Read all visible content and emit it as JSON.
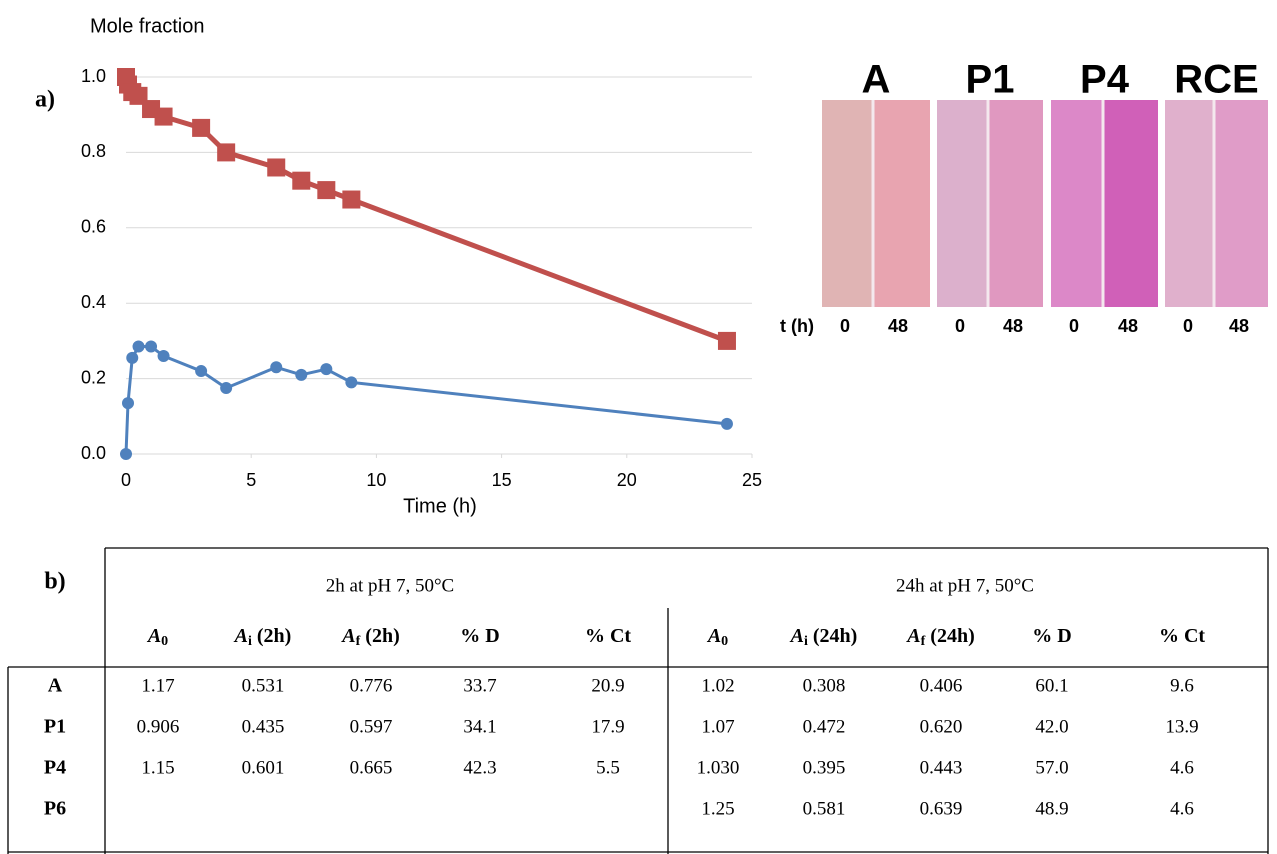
{
  "chart_data": {
    "type": "line",
    "panel_label": "a)",
    "y_label": "Mole fraction",
    "x_label": "Time (h)",
    "x": [
      0,
      0.08,
      0.25,
      0.5,
      1,
      1.5,
      3,
      4,
      6,
      7,
      8,
      9,
      24
    ],
    "series": [
      {
        "color": "#c0504d",
        "marker": "square",
        "values": [
          1.0,
          0.98,
          0.96,
          0.95,
          0.915,
          0.895,
          0.865,
          0.8,
          0.76,
          0.725,
          0.7,
          0.675,
          0.3
        ]
      },
      {
        "color": "#4f81bd",
        "marker": "circle",
        "values": [
          0,
          0.135,
          0.255,
          0.285,
          0.285,
          0.26,
          0.22,
          0.175,
          0.23,
          0.21,
          0.225,
          0.19,
          0.08
        ]
      }
    ],
    "xlim": [
      0,
      25
    ],
    "xticks": [
      0,
      5,
      10,
      15,
      20,
      25
    ],
    "ylim": [
      0,
      1
    ],
    "yticks": [
      {
        "value": 0,
        "label": "0.0"
      },
      0.2,
      0.4,
      0.6,
      0.8,
      {
        "value": 1,
        "label": "1.0"
      }
    ],
    "grid": true
  },
  "photos": {
    "time_label": "t (h)",
    "panels": [
      {
        "label": "A",
        "times": [
          "0",
          "48"
        ]
      },
      {
        "label": "P1",
        "times": [
          "0",
          "48"
        ]
      },
      {
        "label": "P4",
        "times": [
          "0",
          "48"
        ]
      },
      {
        "label": "RCE",
        "times": [
          "0",
          "48"
        ]
      }
    ]
  },
  "table": {
    "label": "b)",
    "groups": [
      "2h at pH 7, 50°C",
      "24h at pH 7, 50°C"
    ],
    "columns": [
      {
        "main": "A",
        "sub": "0"
      },
      {
        "main": "A",
        "sub": "i",
        "rest": " (2h)"
      },
      {
        "main": "A",
        "sub": "f",
        "rest": " (2h)"
      },
      {
        "main": "% D"
      },
      {
        "main": "% Ct"
      },
      {
        "main": "A",
        "sub": "0"
      },
      {
        "main": "A",
        "sub": "i",
        "rest": " (24h)"
      },
      {
        "main": "A",
        "sub": "f",
        "rest": " (24h)"
      },
      {
        "main": "% D"
      },
      {
        "main": "% Ct"
      }
    ],
    "rows": [
      [
        "A",
        "1.17",
        "0.531",
        "0.776",
        "33.7",
        "20.9",
        "1.02",
        "0.308",
        "0.406",
        "60.1",
        "9.6"
      ],
      [
        "P1",
        "0.906",
        "0.435",
        "0.597",
        "34.1",
        "17.9",
        "1.07",
        "0.472",
        "0.620",
        "42.0",
        "13.9"
      ],
      [
        "P4",
        "1.15",
        "0.601",
        "0.665",
        "42.3",
        "5.5",
        "1.030",
        "0.395",
        "0.443",
        "57.0",
        "4.6"
      ],
      [
        "P6",
        null,
        null,
        null,
        null,
        null,
        "1.25",
        "0.581",
        "0.639",
        "48.9",
        "4.6"
      ]
    ]
  }
}
